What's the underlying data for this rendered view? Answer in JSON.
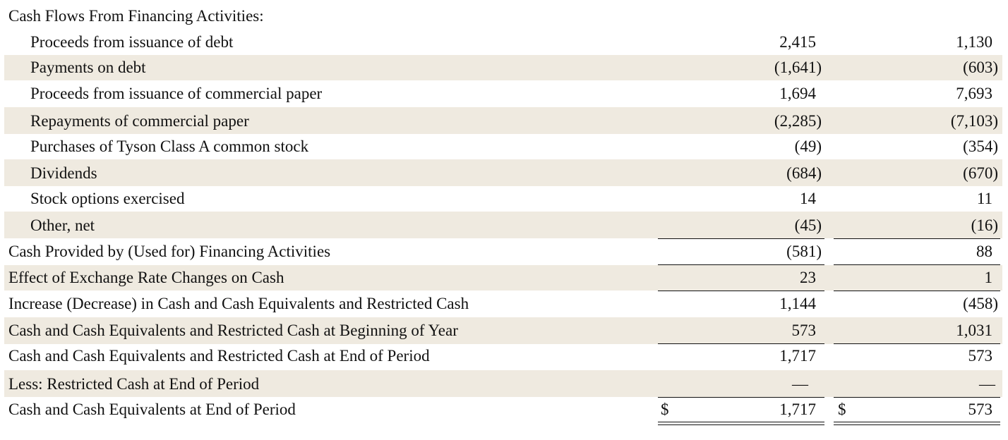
{
  "section_header": "Cash Flows From Financing Activities:",
  "rows": [
    {
      "label": "Proceeds from issuance of debt",
      "col1": "2,415",
      "col2": "1,130"
    },
    {
      "label": "Payments on debt",
      "col1": "(1,641)",
      "col2": "(603)"
    },
    {
      "label": "Proceeds from issuance of commercial paper",
      "col1": "1,694",
      "col2": "7,693"
    },
    {
      "label": "Repayments of commercial paper",
      "col1": "(2,285)",
      "col2": "(7,103)"
    },
    {
      "label": "Purchases of Tyson Class A common stock",
      "col1": "(49)",
      "col2": "(354)"
    },
    {
      "label": "Dividends",
      "col1": "(684)",
      "col2": "(670)"
    },
    {
      "label": "Stock options exercised",
      "col1": "14",
      "col2": "11"
    },
    {
      "label": "Other, net",
      "col1": "(45)",
      "col2": "(16)"
    },
    {
      "label": "Cash Provided by (Used for) Financing Activities",
      "col1": "(581)",
      "col2": "88"
    },
    {
      "label": "Effect of Exchange Rate Changes on Cash",
      "col1": "23",
      "col2": "1"
    },
    {
      "label": "Increase (Decrease) in Cash and Cash Equivalents and Restricted Cash",
      "col1": "1,144",
      "col2": "(458)"
    },
    {
      "label": "Cash and Cash Equivalents and Restricted Cash at Beginning of Year",
      "col1": "573",
      "col2": "1,031"
    },
    {
      "label": "Cash and Cash Equivalents and Restricted Cash at End of Period",
      "col1": "1,717",
      "col2": "573"
    },
    {
      "label": "Less: Restricted Cash at End of Period",
      "col1": "—",
      "col2": "—"
    },
    {
      "label": "Cash and Cash Equivalents at End of Period",
      "col1": "1,717",
      "col2": "573",
      "currency_symbol": "$"
    }
  ],
  "colors": {
    "shaded_row": "#efeae0",
    "text": "#111111",
    "rule": "#111111"
  }
}
